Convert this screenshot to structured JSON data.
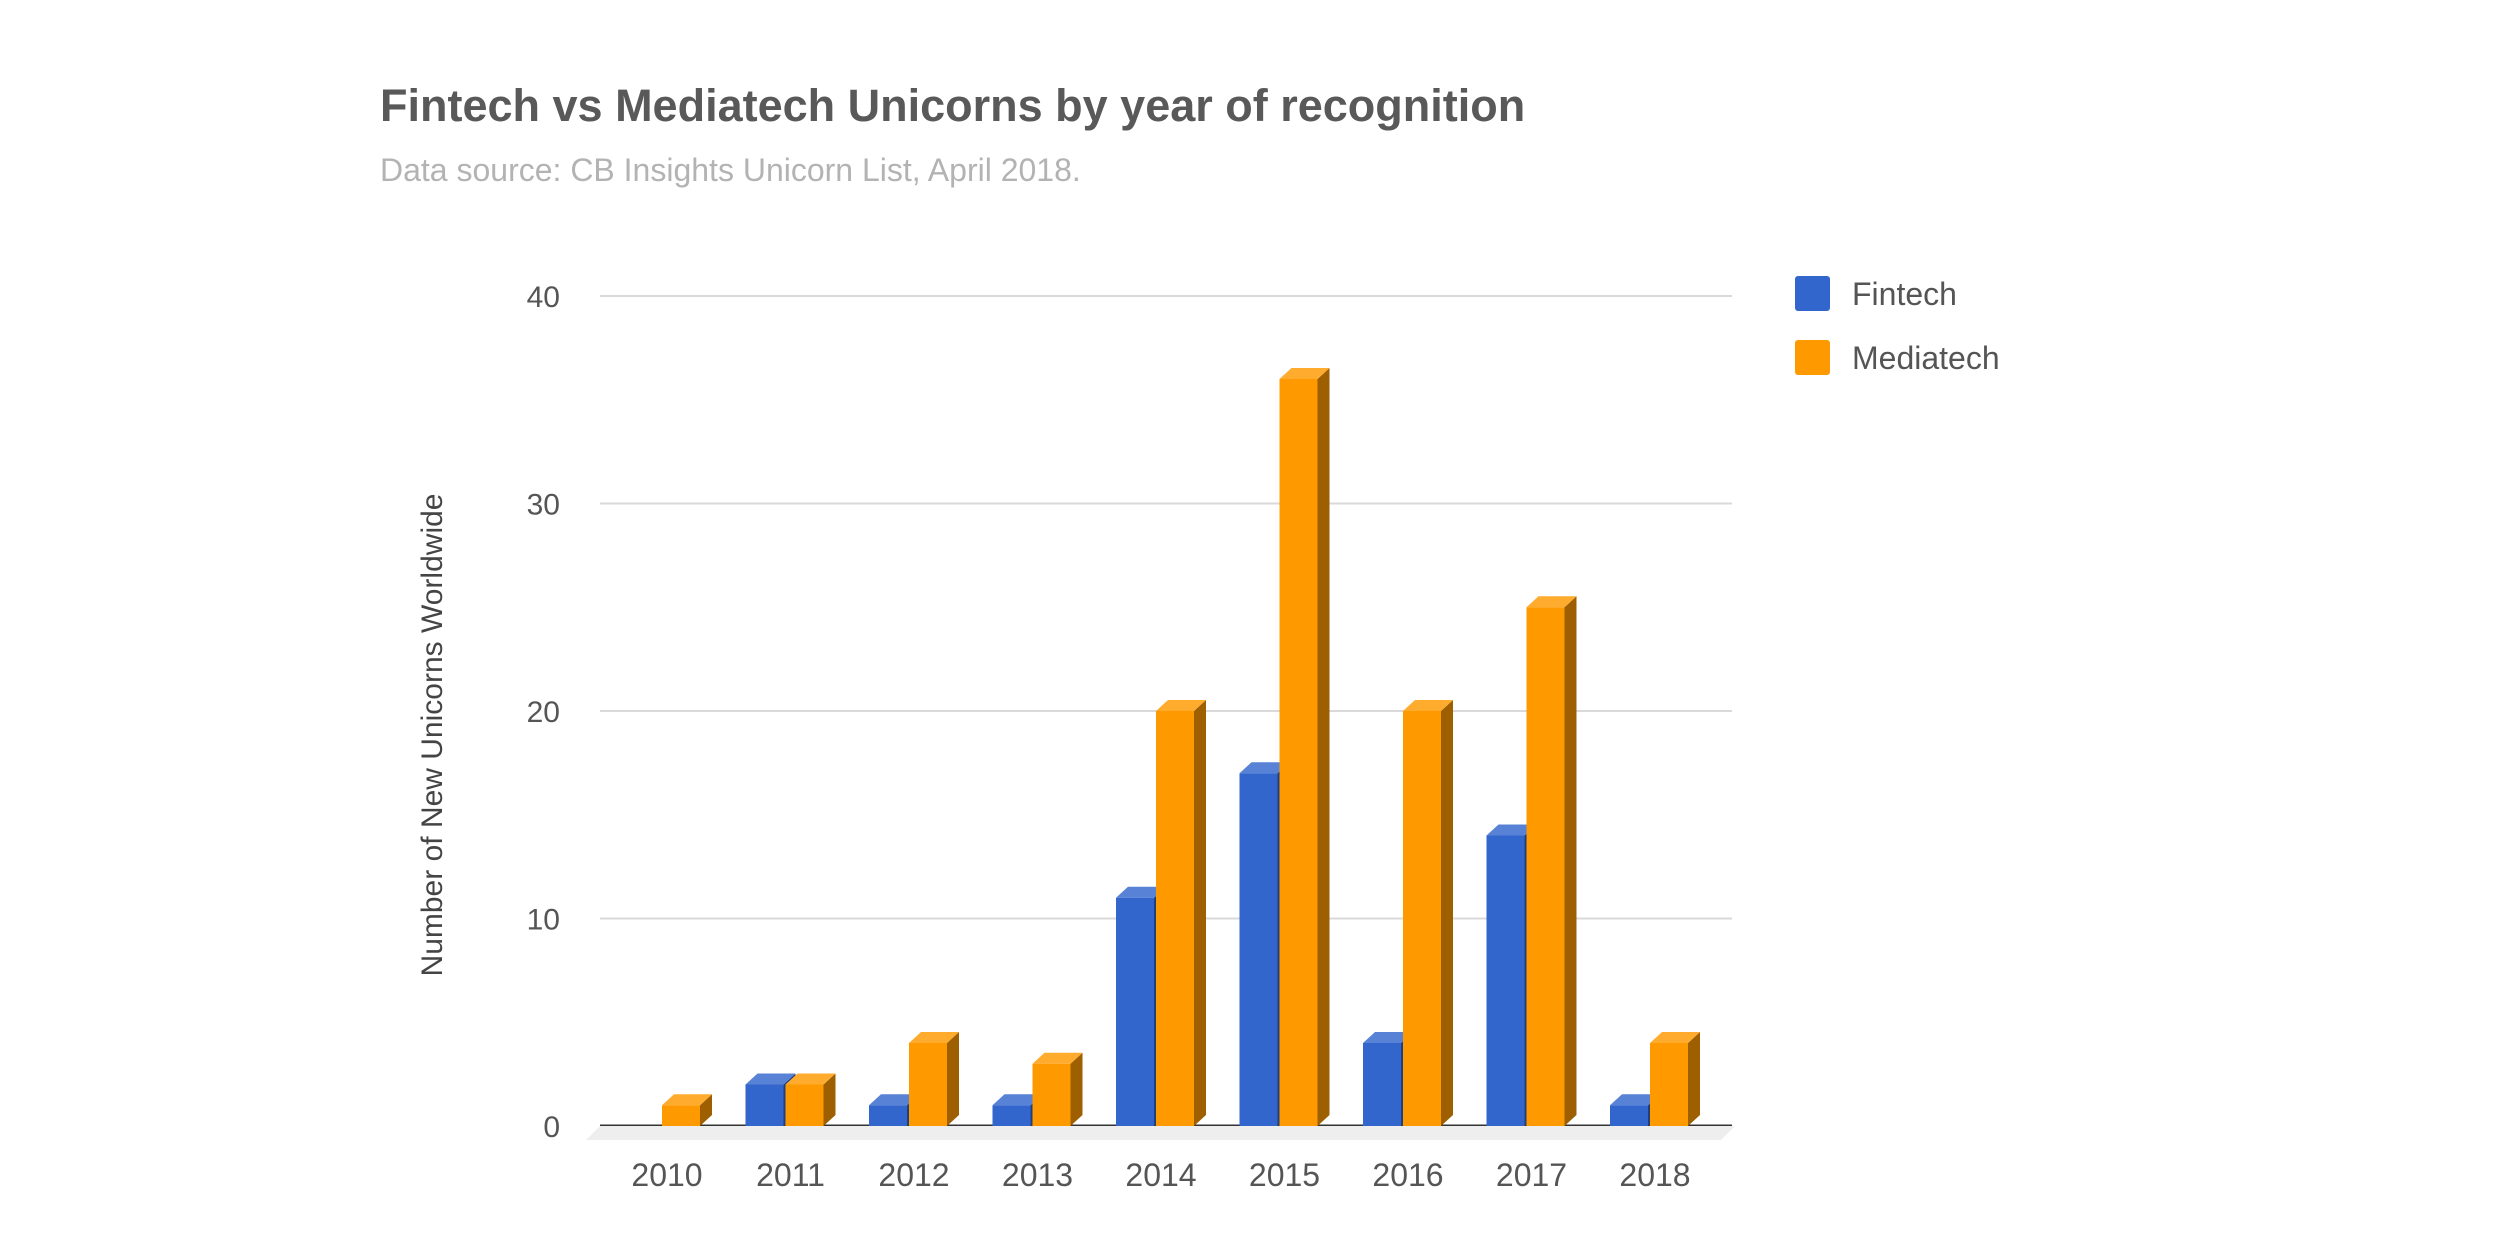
{
  "chart_data": {
    "type": "bar",
    "title": "Fintech vs Mediatech Unicorns by year of recognition",
    "subtitle": "Data source: CB Insights Unicorn List, April 2018.",
    "xlabel": "",
    "ylabel": "Number of New Unicorns Worldwide",
    "categories": [
      "2010",
      "2011",
      "2012",
      "2013",
      "2014",
      "2015",
      "2016",
      "2017",
      "2018"
    ],
    "series": [
      {
        "name": "Fintech",
        "color": "#3366cc",
        "values": [
          0,
          2,
          1,
          1,
          11,
          17,
          4,
          14,
          1
        ]
      },
      {
        "name": "Mediatech",
        "color": "#ff9900",
        "values": [
          1,
          2,
          4,
          3,
          20,
          36,
          20,
          25,
          4
        ]
      }
    ],
    "ylim": [
      0,
      40
    ],
    "yticks": [
      "0",
      "10",
      "20",
      "30",
      "40"
    ],
    "grid": true,
    "legend": "right",
    "bar_style": "3d"
  }
}
